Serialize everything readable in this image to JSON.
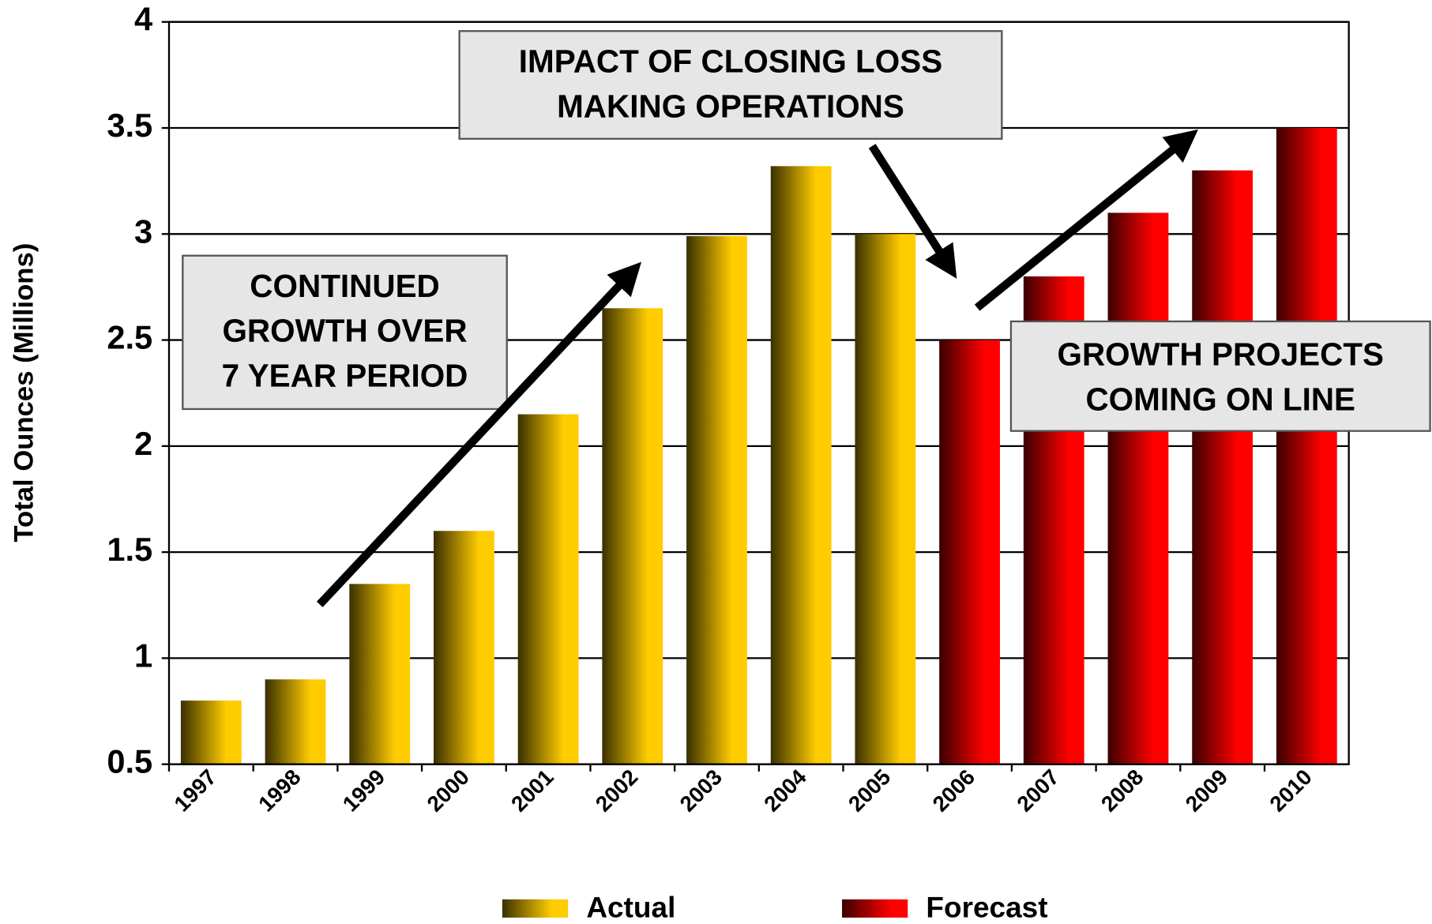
{
  "chart_data": {
    "type": "bar",
    "y_label": "Total Ounces (Millions)",
    "categories": [
      "1997",
      "1998",
      "1999",
      "2000",
      "2001",
      "2002",
      "2003",
      "2004",
      "2005",
      "2006",
      "2007",
      "2008",
      "2009",
      "2010"
    ],
    "series": [
      {
        "name": "Actual",
        "color": "#ffcc00",
        "values": [
          0.8,
          0.9,
          1.35,
          1.6,
          2.15,
          2.65,
          2.99,
          3.32,
          3.0,
          null,
          null,
          null,
          null,
          null
        ]
      },
      {
        "name": "Forecast",
        "color": "#ff0000",
        "values": [
          null,
          null,
          null,
          null,
          null,
          null,
          null,
          null,
          null,
          2.5,
          2.8,
          3.1,
          3.3,
          3.5
        ]
      }
    ],
    "ylim": [
      0.5,
      4
    ],
    "yticks": [
      0.5,
      1,
      1.5,
      2,
      2.5,
      3,
      3.5,
      4
    ],
    "grid": true,
    "legend": "bottom",
    "annotations": [
      {
        "lines": [
          "IMPACT OF CLOSING LOSS",
          "MAKING OPERATIONS"
        ]
      },
      {
        "lines": [
          "CONTINUED",
          "GROWTH OVER",
          "7 YEAR PERIOD"
        ]
      },
      {
        "lines": [
          "GROWTH PROJECTS",
          "COMING ON LINE"
        ]
      }
    ]
  }
}
